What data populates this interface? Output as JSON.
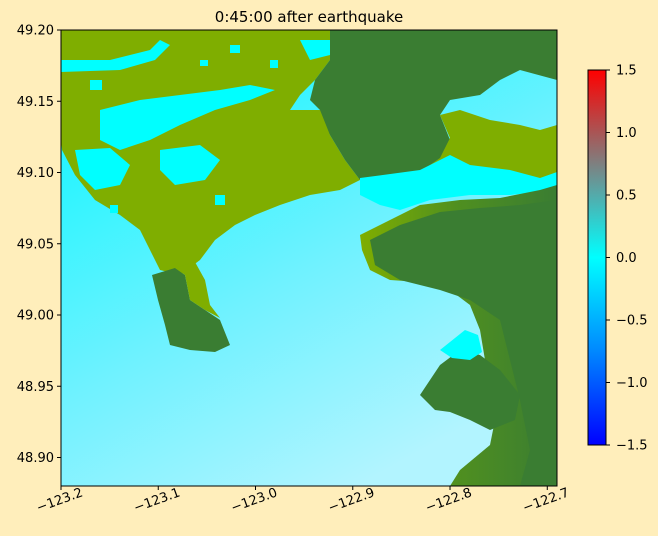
{
  "title": "0:45:00 after earthquake",
  "map": {
    "x_ticks": [
      -123.2,
      -123.1,
      -123.0,
      -122.9,
      -122.8,
      -122.7
    ],
    "x_tick_labels": [
      "−123.2",
      "−123.1",
      "−123.0",
      "−122.9",
      "−122.8",
      "−122.7"
    ],
    "y_ticks": [
      48.9,
      48.95,
      49.0,
      49.05,
      49.1,
      49.15,
      49.2
    ],
    "y_tick_labels": [
      "48.90",
      "48.95",
      "49.00",
      "49.05",
      "49.10",
      "49.15",
      "49.20"
    ],
    "xlim": [
      -123.2,
      -122.69
    ],
    "ylim": [
      48.88,
      49.2
    ],
    "x_tick_rotation": "20deg",
    "colors": {
      "water": "#00ffff",
      "water_deep": "#a9f6ff",
      "lowland": "#7fae00",
      "upland": "#3a7d32"
    }
  },
  "colorbar": {
    "ticks": [
      1.5,
      1.0,
      0.5,
      0.0,
      -0.5,
      -1.0,
      -1.5
    ],
    "tick_labels": [
      "1.5",
      "1.0",
      "0.5",
      "0.0",
      "−0.5",
      "−1.0",
      "−1.5"
    ],
    "range": [
      -1.5,
      1.5
    ],
    "colormap": [
      "#0000ff",
      "#00aaff",
      "#00ffff",
      "#7a7a7a",
      "#ff0000"
    ]
  }
}
